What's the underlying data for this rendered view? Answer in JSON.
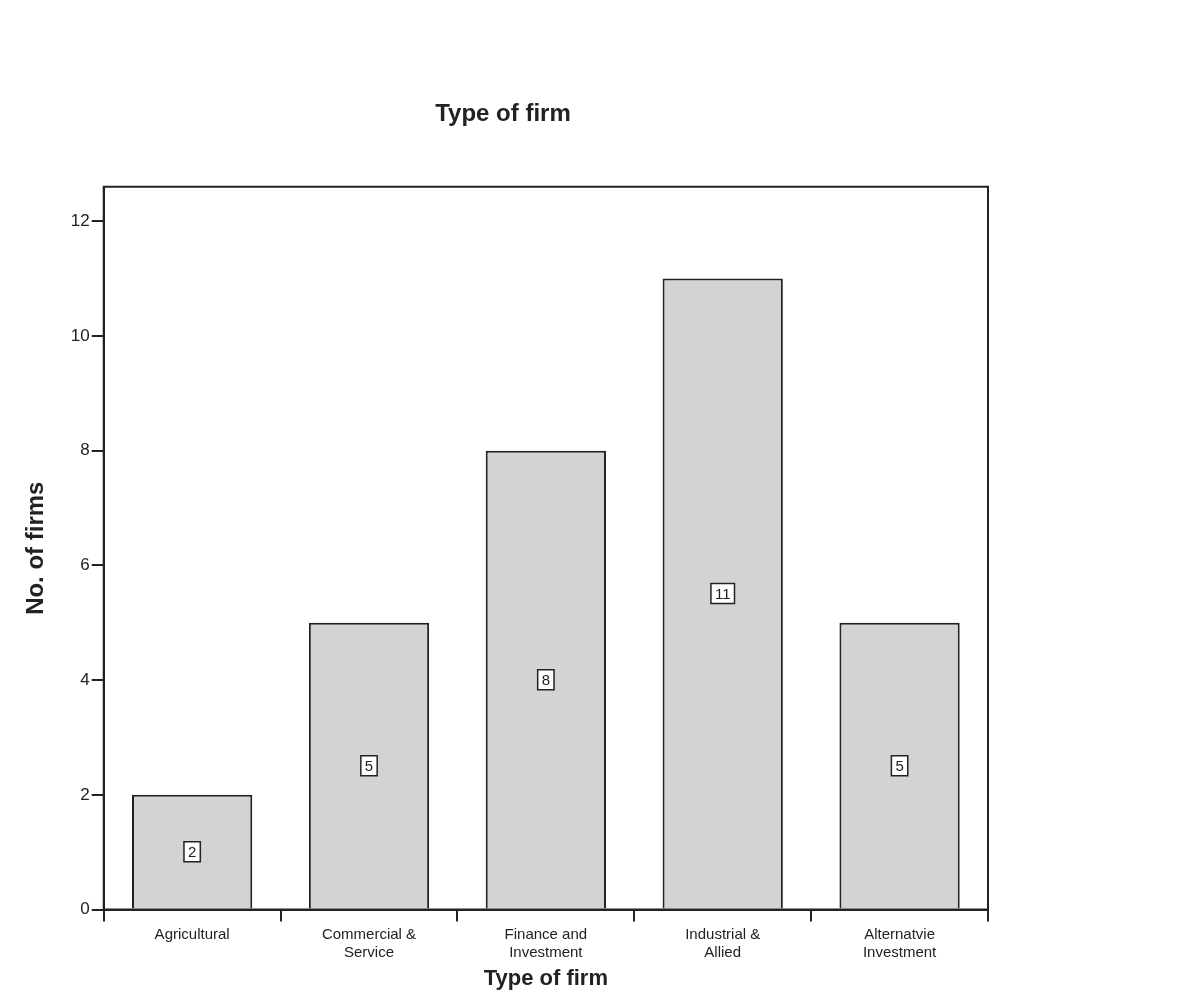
{
  "chart_data": {
    "type": "bar",
    "title": "Type of firm",
    "xlabel": "Type of firm",
    "ylabel": "No. of firms",
    "categories": [
      "Agricultural",
      "Commercial & Service",
      "Finance and Investment",
      "Industrial & Allied",
      "Alternatvie Investment"
    ],
    "values": [
      2,
      5,
      8,
      11,
      5
    ],
    "color": "#d3d3d3",
    "ylim": [
      0,
      12.6
    ],
    "yticks": [
      0,
      2,
      4,
      6,
      8,
      10,
      12
    ],
    "grid": false,
    "legend": false,
    "data_labels": true
  }
}
